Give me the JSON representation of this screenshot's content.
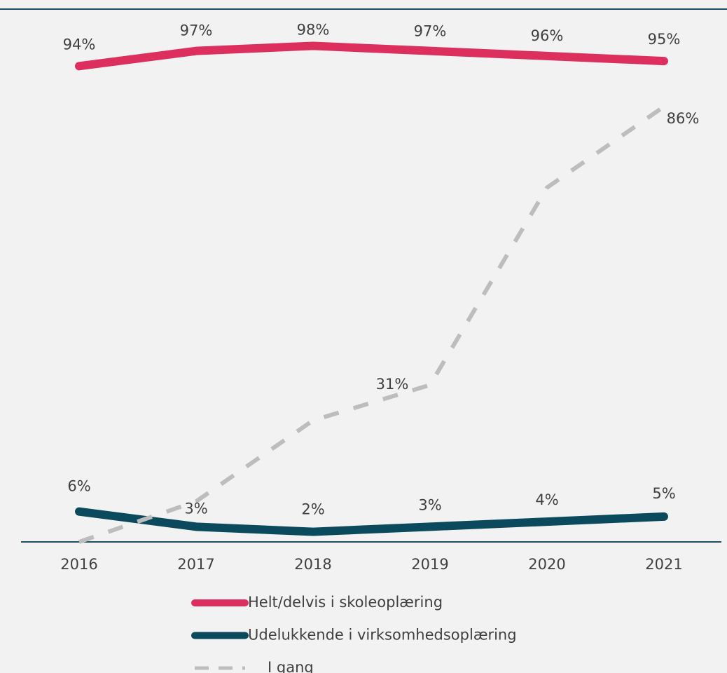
{
  "chart_data": {
    "type": "line",
    "categories": [
      "2016",
      "2017",
      "2018",
      "2019",
      "2020",
      "2021"
    ],
    "ylim": [
      0,
      100
    ],
    "series": [
      {
        "name": "Helt/delvis i skoleoplæring",
        "color": "#dc2f5e",
        "dash": false,
        "values": [
          94,
          97,
          98,
          97,
          96,
          95
        ],
        "value_labels": [
          "94%",
          "97%",
          "98%",
          "97%",
          "96%",
          "95%"
        ]
      },
      {
        "name": "Udelukkende i virksomhedsoplæring",
        "color": "#0b4a5c",
        "dash": false,
        "values": [
          6,
          3,
          2,
          3,
          4,
          5
        ],
        "value_labels": [
          "6%",
          "3%",
          "2%",
          "3%",
          "4%",
          "5%"
        ]
      },
      {
        "name": "I gang",
        "color": "#bdbdbd",
        "dash": true,
        "values": [
          0,
          8,
          24,
          31,
          70,
          86
        ],
        "value_labels": [
          null,
          null,
          null,
          "31%",
          null,
          "86%"
        ]
      }
    ]
  }
}
